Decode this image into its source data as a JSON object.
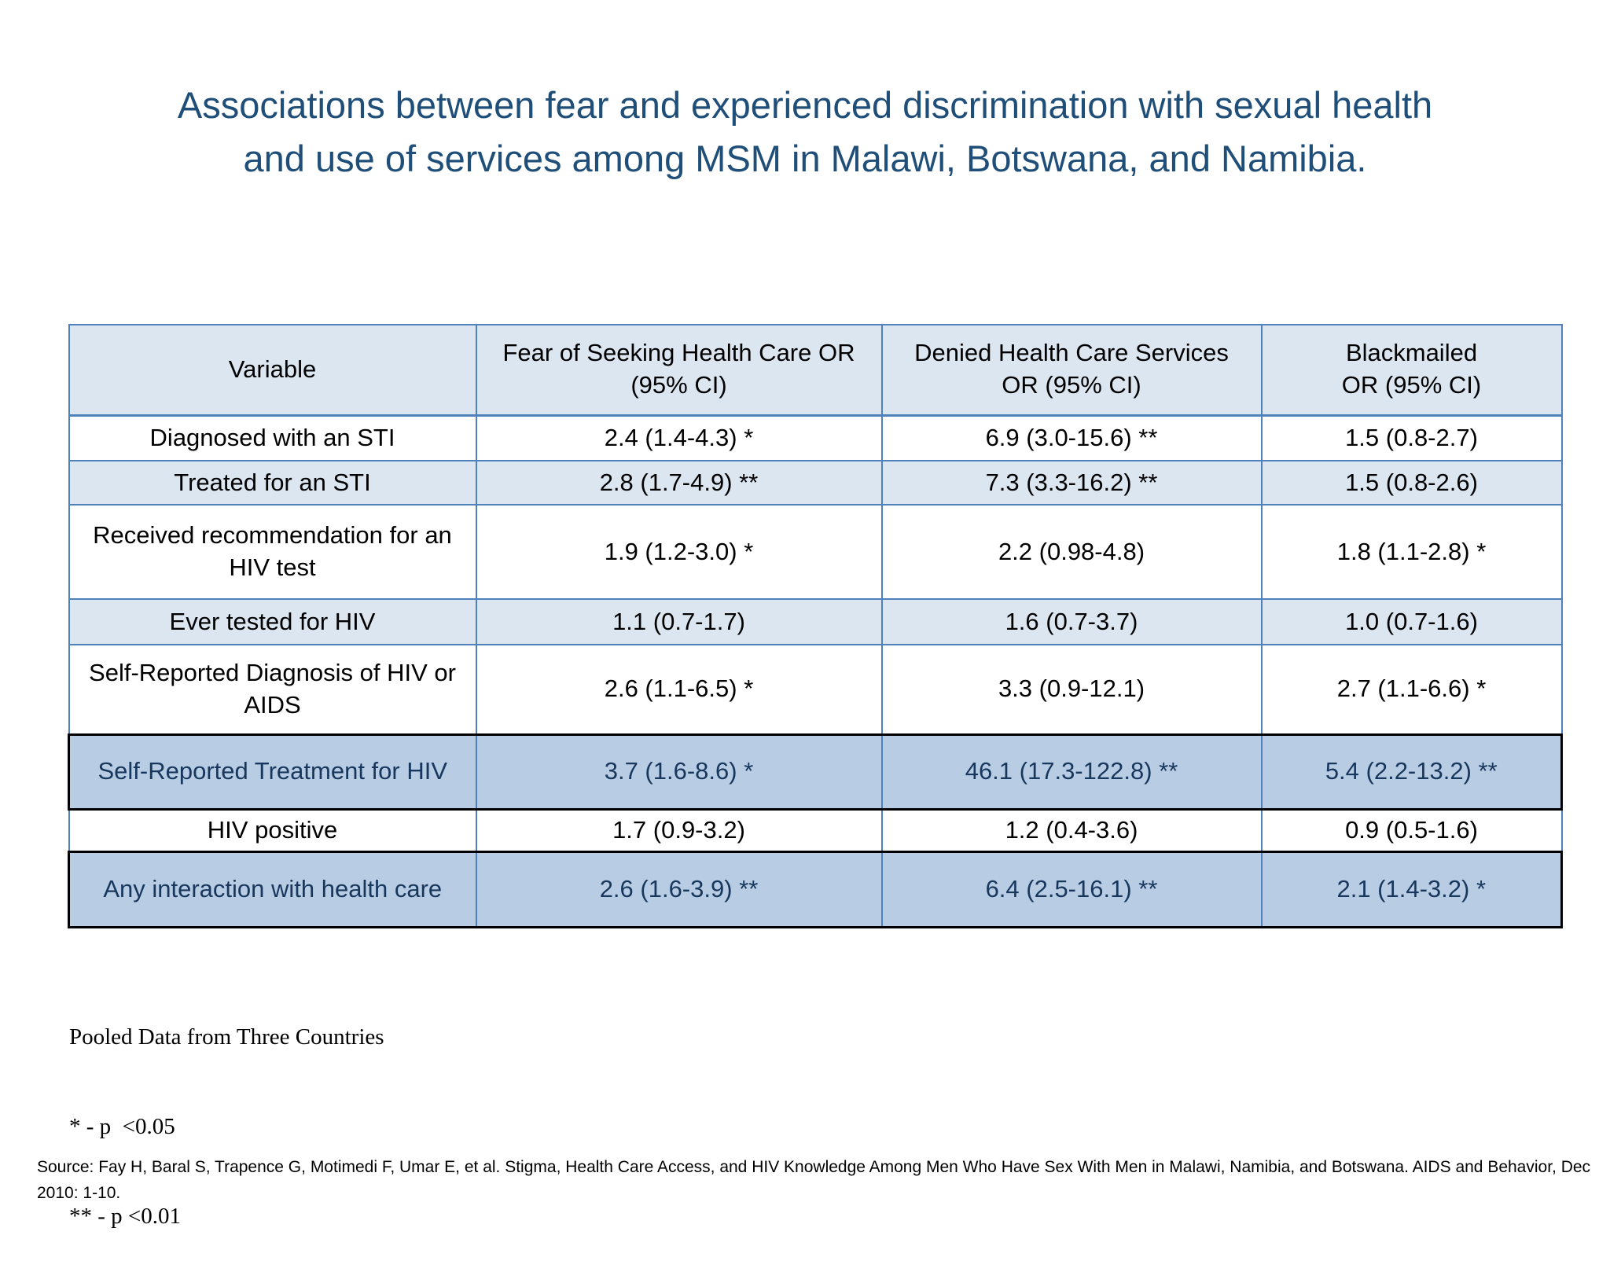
{
  "slide": {
    "title": {
      "line1": "Associations between fear and experienced discrimination with sexual health",
      "line2": "and use of services among MSM in Malawi, Botswana, and Namibia."
    },
    "table": {
      "columns": [
        "Variable",
        "Fear of Seeking Health Care OR (95% CI)",
        "Denied Health Care Services OR (95% CI)",
        "Blackmailed OR (95% CI)"
      ],
      "rows": [
        {
          "variable": "Diagnosed with an STI",
          "fear": "2.4 (1.4-4.3) *",
          "denied": "6.9 (3.0-15.6) **",
          "blackmailed": "1.5 (0.8-2.7)"
        },
        {
          "variable": "Treated for an STI",
          "fear": "2.8 (1.7-4.9) **",
          "denied": "7.3 (3.3-16.2) **",
          "blackmailed": "1.5 (0.8-2.6)"
        },
        {
          "variable": "Received recommendation for an HIV test",
          "fear": "1.9 (1.2-3.0) *",
          "denied": "2.2 (0.98-4.8)",
          "blackmailed": "1.8 (1.1-2.8) *"
        },
        {
          "variable": "Ever tested for HIV",
          "fear": "1.1 (0.7-1.7)",
          "denied": "1.6 (0.7-3.7)",
          "blackmailed": "1.0 (0.7-1.6)"
        },
        {
          "variable": "Self-Reported Diagnosis of HIV or AIDS",
          "fear": "2.6 (1.1-6.5) *",
          "denied": "3.3 (0.9-12.1)",
          "blackmailed": "2.7 (1.1-6.6) *"
        },
        {
          "variable": "Self-Reported Treatment for HIV",
          "fear": "3.7 (1.6-8.6) *",
          "denied": "46.1 (17.3-122.8) **",
          "blackmailed": "5.4 (2.2-13.2) **"
        },
        {
          "variable": "HIV positive",
          "fear": "1.7 (0.9-3.2)",
          "denied": "1.2 (0.4-3.6)",
          "blackmailed": "0.9 (0.5-1.6)"
        },
        {
          "variable": "Any interaction with health care",
          "fear": "2.6 (1.6-3.9) **",
          "denied": "6.4 (2.5-16.1) **",
          "blackmailed": "2.1 (1.4-3.2) *"
        }
      ]
    },
    "footnotes": {
      "line1": "Pooled Data from Three Countries",
      "line2": "* - p  <0.05",
      "line3": "** - p <0.01"
    },
    "source": "Source: Fay H, Baral S, Trapence G, Motimedi F, Umar E, et al. Stigma, Health Care Access, and HIV Knowledge Among Men Who Have Sex With Men in Malawi, Namibia, and Botswana. AIDS and Behavior, Dec 2010: 1-10.",
    "colors": {
      "title_text": "#1F4E79",
      "table_border": "#4F81BD",
      "banded_row": "#DCE6F1",
      "highlight_row": "#B8CCE4",
      "highlight_text": "#17375D"
    }
  }
}
